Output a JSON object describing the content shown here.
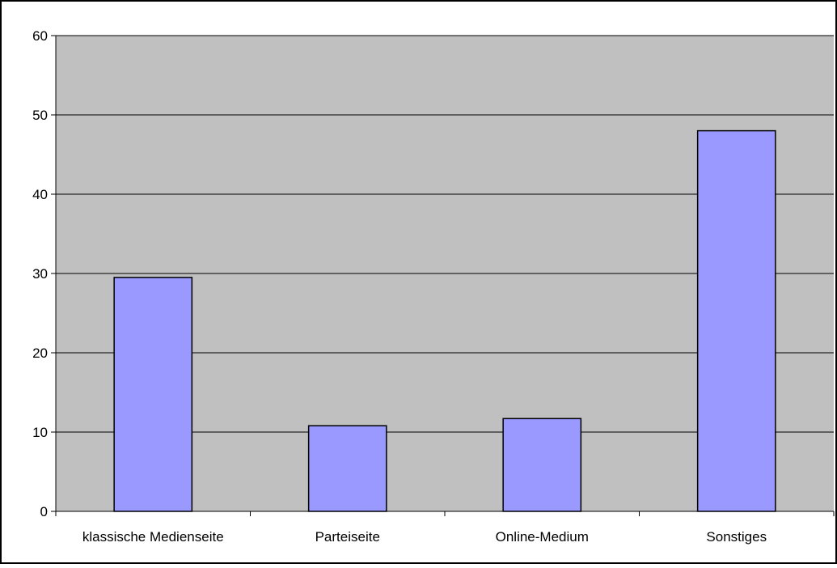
{
  "chart_data": {
    "type": "bar",
    "title": "",
    "xlabel": "",
    "ylabel": "",
    "categories": [
      "klassische Medienseite",
      "Parteiseite",
      "Online-Medium",
      "Sonstiges"
    ],
    "values": [
      29.5,
      10.8,
      11.7,
      48
    ],
    "ylim": [
      0,
      60
    ],
    "yticks": [
      "0",
      "10",
      "20",
      "30",
      "40",
      "50",
      "60"
    ],
    "grid": true,
    "legend": "none",
    "colors": {
      "bar_fill": "#9999FF",
      "bar_stroke": "#000000",
      "plot_background": "#C0C0C0",
      "gridline": "#000000",
      "frame": "#000000"
    }
  }
}
